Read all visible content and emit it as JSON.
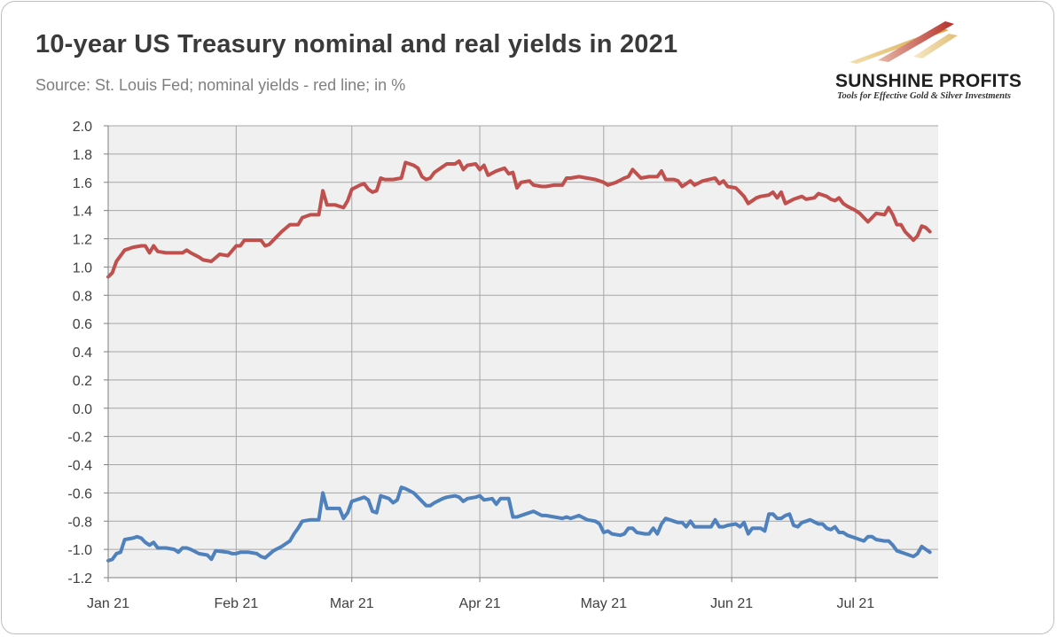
{
  "title": "10-year US Treasury nominal and real yields in 2021",
  "subtitle": "Source: St. Louis Fed; nominal yields - red line;  in %",
  "logo": {
    "name": "SUNSHINE PROFITS",
    "tagline": "Tools for Effective Gold & Silver Investments"
  },
  "colors": {
    "nominal": "#c0504d",
    "real": "#4f81bd",
    "plot_bg": "#f0f0f0",
    "grid": "#a6a6a6"
  },
  "chart_data": {
    "type": "line",
    "title": "10-year US Treasury nominal and real yields in 2021",
    "xlabel": "",
    "ylabel": "",
    "ylim": [
      -1.2,
      2.0
    ],
    "yticks": [
      "2.0",
      "1.8",
      "1.6",
      "1.4",
      "1.2",
      "1.0",
      "0.8",
      "0.6",
      "0.4",
      "0.2",
      "0.0",
      "-0.2",
      "-0.4",
      "-0.6",
      "-0.8",
      "-1.0",
      "-1.2"
    ],
    "xticks": [
      {
        "label": "Jan 21",
        "day": 0
      },
      {
        "label": "Feb 21",
        "day": 31
      },
      {
        "label": "Mar 21",
        "day": 59
      },
      {
        "label": "Apr 21",
        "day": 90
      },
      {
        "label": "May 21",
        "day": 120
      },
      {
        "label": "Jun 21",
        "day": 151
      },
      {
        "label": "Jul 21",
        "day": 181
      }
    ],
    "xlim": [
      0,
      201
    ],
    "grid": true,
    "series": [
      {
        "key": "nominal",
        "points": [
          [
            0,
            0.93
          ],
          [
            1,
            0.96
          ],
          [
            2,
            1.04
          ],
          [
            4,
            1.12
          ],
          [
            6,
            1.14
          ],
          [
            8,
            1.15
          ],
          [
            9,
            1.15
          ],
          [
            10,
            1.1
          ],
          [
            11,
            1.15
          ],
          [
            12,
            1.11
          ],
          [
            14,
            1.1
          ],
          [
            16,
            1.1
          ],
          [
            18,
            1.1
          ],
          [
            19,
            1.12
          ],
          [
            20,
            1.1
          ],
          [
            22,
            1.07
          ],
          [
            23,
            1.05
          ],
          [
            25,
            1.04
          ],
          [
            27,
            1.09
          ],
          [
            29,
            1.08
          ],
          [
            31,
            1.15
          ],
          [
            32,
            1.15
          ],
          [
            33,
            1.19
          ],
          [
            35,
            1.19
          ],
          [
            37,
            1.19
          ],
          [
            38,
            1.15
          ],
          [
            39,
            1.16
          ],
          [
            41,
            1.22
          ],
          [
            42,
            1.25
          ],
          [
            44,
            1.3
          ],
          [
            46,
            1.3
          ],
          [
            47,
            1.35
          ],
          [
            49,
            1.37
          ],
          [
            51,
            1.37
          ],
          [
            52,
            1.54
          ],
          [
            53,
            1.44
          ],
          [
            55,
            1.44
          ],
          [
            57,
            1.42
          ],
          [
            58,
            1.47
          ],
          [
            59,
            1.55
          ],
          [
            61,
            1.58
          ],
          [
            62,
            1.59
          ],
          [
            63,
            1.55
          ],
          [
            64,
            1.53
          ],
          [
            65,
            1.54
          ],
          [
            66,
            1.63
          ],
          [
            67,
            1.62
          ],
          [
            69,
            1.62
          ],
          [
            71,
            1.63
          ],
          [
            72,
            1.74
          ],
          [
            74,
            1.72
          ],
          [
            75,
            1.7
          ],
          [
            76,
            1.64
          ],
          [
            77,
            1.62
          ],
          [
            78,
            1.63
          ],
          [
            79,
            1.67
          ],
          [
            81,
            1.71
          ],
          [
            82,
            1.73
          ],
          [
            84,
            1.73
          ],
          [
            85,
            1.75
          ],
          [
            86,
            1.69
          ],
          [
            87,
            1.72
          ],
          [
            89,
            1.73
          ],
          [
            90,
            1.69
          ],
          [
            91,
            1.72
          ],
          [
            92,
            1.65
          ],
          [
            94,
            1.68
          ],
          [
            96,
            1.7
          ],
          [
            97,
            1.66
          ],
          [
            98,
            1.67
          ],
          [
            99,
            1.56
          ],
          [
            100,
            1.6
          ],
          [
            102,
            1.61
          ],
          [
            103,
            1.58
          ],
          [
            105,
            1.57
          ],
          [
            106,
            1.57
          ],
          [
            108,
            1.58
          ],
          [
            110,
            1.58
          ],
          [
            111,
            1.63
          ],
          [
            112,
            1.63
          ],
          [
            114,
            1.64
          ],
          [
            116,
            1.63
          ],
          [
            118,
            1.62
          ],
          [
            120,
            1.6
          ],
          [
            121,
            1.58
          ],
          [
            123,
            1.6
          ],
          [
            125,
            1.63
          ],
          [
            126,
            1.64
          ],
          [
            127,
            1.69
          ],
          [
            128,
            1.66
          ],
          [
            129,
            1.63
          ],
          [
            131,
            1.64
          ],
          [
            133,
            1.64
          ],
          [
            134,
            1.68
          ],
          [
            135,
            1.62
          ],
          [
            137,
            1.62
          ],
          [
            138,
            1.61
          ],
          [
            139,
            1.57
          ],
          [
            141,
            1.61
          ],
          [
            142,
            1.58
          ],
          [
            144,
            1.61
          ],
          [
            147,
            1.63
          ],
          [
            148,
            1.59
          ],
          [
            149,
            1.61
          ],
          [
            150,
            1.57
          ],
          [
            152,
            1.56
          ],
          [
            153,
            1.53
          ],
          [
            154,
            1.5
          ],
          [
            155,
            1.45
          ],
          [
            157,
            1.49
          ],
          [
            158,
            1.5
          ],
          [
            160,
            1.51
          ],
          [
            161,
            1.53
          ],
          [
            162,
            1.49
          ],
          [
            163,
            1.53
          ],
          [
            164,
            1.45
          ],
          [
            166,
            1.48
          ],
          [
            168,
            1.5
          ],
          [
            169,
            1.48
          ],
          [
            171,
            1.49
          ],
          [
            172,
            1.52
          ],
          [
            174,
            1.5
          ],
          [
            175,
            1.48
          ],
          [
            176,
            1.47
          ],
          [
            177,
            1.49
          ],
          [
            178,
            1.45
          ],
          [
            179,
            1.43
          ],
          [
            181,
            1.4
          ],
          [
            182,
            1.38
          ],
          [
            183,
            1.35
          ],
          [
            184,
            1.32
          ],
          [
            185,
            1.35
          ],
          [
            186,
            1.38
          ],
          [
            188,
            1.37
          ],
          [
            189,
            1.42
          ],
          [
            190,
            1.37
          ],
          [
            191,
            1.3
          ],
          [
            192,
            1.3
          ],
          [
            193,
            1.25
          ],
          [
            194,
            1.22
          ],
          [
            195,
            1.19
          ],
          [
            196,
            1.22
          ],
          [
            197,
            1.29
          ],
          [
            198,
            1.28
          ],
          [
            199,
            1.25
          ]
        ]
      },
      {
        "key": "real",
        "points": [
          [
            0,
            -1.08
          ],
          [
            1,
            -1.07
          ],
          [
            2,
            -1.03
          ],
          [
            3,
            -1.02
          ],
          [
            4,
            -0.93
          ],
          [
            6,
            -0.92
          ],
          [
            7,
            -0.91
          ],
          [
            8,
            -0.92
          ],
          [
            9,
            -0.95
          ],
          [
            10,
            -0.97
          ],
          [
            11,
            -0.95
          ],
          [
            12,
            -0.99
          ],
          [
            14,
            -0.99
          ],
          [
            16,
            -1.0
          ],
          [
            17,
            -1.02
          ],
          [
            18,
            -0.99
          ],
          [
            19,
            -0.99
          ],
          [
            20,
            -1.0
          ],
          [
            22,
            -1.03
          ],
          [
            24,
            -1.04
          ],
          [
            25,
            -1.07
          ],
          [
            26,
            -1.01
          ],
          [
            29,
            -1.02
          ],
          [
            30,
            -1.03
          ],
          [
            31,
            -1.03
          ],
          [
            32,
            -1.02
          ],
          [
            34,
            -1.02
          ],
          [
            36,
            -1.03
          ],
          [
            37,
            -1.05
          ],
          [
            38,
            -1.06
          ],
          [
            40,
            -1.01
          ],
          [
            42,
            -0.98
          ],
          [
            44,
            -0.94
          ],
          [
            45,
            -0.89
          ],
          [
            46,
            -0.85
          ],
          [
            47,
            -0.8
          ],
          [
            49,
            -0.79
          ],
          [
            50,
            -0.79
          ],
          [
            51,
            -0.79
          ],
          [
            52,
            -0.6
          ],
          [
            53,
            -0.71
          ],
          [
            55,
            -0.71
          ],
          [
            56,
            -0.71
          ],
          [
            57,
            -0.78
          ],
          [
            58,
            -0.74
          ],
          [
            59,
            -0.66
          ],
          [
            61,
            -0.64
          ],
          [
            62,
            -0.63
          ],
          [
            63,
            -0.65
          ],
          [
            64,
            -0.73
          ],
          [
            65,
            -0.74
          ],
          [
            66,
            -0.62
          ],
          [
            67,
            -0.63
          ],
          [
            68,
            -0.64
          ],
          [
            69,
            -0.67
          ],
          [
            70,
            -0.65
          ],
          [
            71,
            -0.56
          ],
          [
            72,
            -0.57
          ],
          [
            74,
            -0.6
          ],
          [
            75,
            -0.63
          ],
          [
            76,
            -0.66
          ],
          [
            77,
            -0.69
          ],
          [
            78,
            -0.69
          ],
          [
            79,
            -0.67
          ],
          [
            81,
            -0.64
          ],
          [
            82,
            -0.63
          ],
          [
            84,
            -0.62
          ],
          [
            85,
            -0.63
          ],
          [
            86,
            -0.66
          ],
          [
            87,
            -0.64
          ],
          [
            89,
            -0.63
          ],
          [
            90,
            -0.62
          ],
          [
            91,
            -0.65
          ],
          [
            93,
            -0.64
          ],
          [
            94,
            -0.68
          ],
          [
            95,
            -0.64
          ],
          [
            96,
            -0.64
          ],
          [
            97,
            -0.64
          ],
          [
            98,
            -0.77
          ],
          [
            99,
            -0.77
          ],
          [
            101,
            -0.75
          ],
          [
            103,
            -0.73
          ],
          [
            105,
            -0.76
          ],
          [
            106,
            -0.76
          ],
          [
            108,
            -0.77
          ],
          [
            110,
            -0.78
          ],
          [
            111,
            -0.77
          ],
          [
            112,
            -0.78
          ],
          [
            114,
            -0.76
          ],
          [
            116,
            -0.79
          ],
          [
            118,
            -0.8
          ],
          [
            119,
            -0.82
          ],
          [
            120,
            -0.88
          ],
          [
            121,
            -0.87
          ],
          [
            122,
            -0.89
          ],
          [
            124,
            -0.9
          ],
          [
            125,
            -0.89
          ],
          [
            126,
            -0.85
          ],
          [
            127,
            -0.85
          ],
          [
            128,
            -0.88
          ],
          [
            130,
            -0.89
          ],
          [
            131,
            -0.89
          ],
          [
            132,
            -0.85
          ],
          [
            133,
            -0.89
          ],
          [
            134,
            -0.82
          ],
          [
            135,
            -0.78
          ],
          [
            137,
            -0.8
          ],
          [
            138,
            -0.81
          ],
          [
            139,
            -0.81
          ],
          [
            140,
            -0.84
          ],
          [
            141,
            -0.8
          ],
          [
            142,
            -0.84
          ],
          [
            145,
            -0.84
          ],
          [
            146,
            -0.84
          ],
          [
            147,
            -0.79
          ],
          [
            148,
            -0.84
          ],
          [
            149,
            -0.84
          ],
          [
            150,
            -0.83
          ],
          [
            152,
            -0.82
          ],
          [
            153,
            -0.84
          ],
          [
            154,
            -0.81
          ],
          [
            155,
            -0.89
          ],
          [
            156,
            -0.85
          ],
          [
            158,
            -0.85
          ],
          [
            159,
            -0.87
          ],
          [
            160,
            -0.75
          ],
          [
            161,
            -0.75
          ],
          [
            162,
            -0.78
          ],
          [
            163,
            -0.78
          ],
          [
            164,
            -0.76
          ],
          [
            165,
            -0.75
          ],
          [
            166,
            -0.83
          ],
          [
            167,
            -0.84
          ],
          [
            168,
            -0.81
          ],
          [
            169,
            -0.8
          ],
          [
            170,
            -0.79
          ],
          [
            172,
            -0.82
          ],
          [
            173,
            -0.82
          ],
          [
            174,
            -0.85
          ],
          [
            175,
            -0.86
          ],
          [
            176,
            -0.84
          ],
          [
            177,
            -0.88
          ],
          [
            178,
            -0.88
          ],
          [
            179,
            -0.9
          ],
          [
            181,
            -0.92
          ],
          [
            182,
            -0.93
          ],
          [
            183,
            -0.94
          ],
          [
            184,
            -0.91
          ],
          [
            185,
            -0.91
          ],
          [
            186,
            -0.93
          ],
          [
            188,
            -0.94
          ],
          [
            189,
            -0.94
          ],
          [
            190,
            -0.97
          ],
          [
            191,
            -1.01
          ],
          [
            192,
            -1.02
          ],
          [
            193,
            -1.03
          ],
          [
            194,
            -1.04
          ],
          [
            195,
            -1.05
          ],
          [
            196,
            -1.03
          ],
          [
            197,
            -0.98
          ],
          [
            198,
            -1.0
          ],
          [
            199,
            -1.02
          ]
        ]
      }
    ]
  }
}
